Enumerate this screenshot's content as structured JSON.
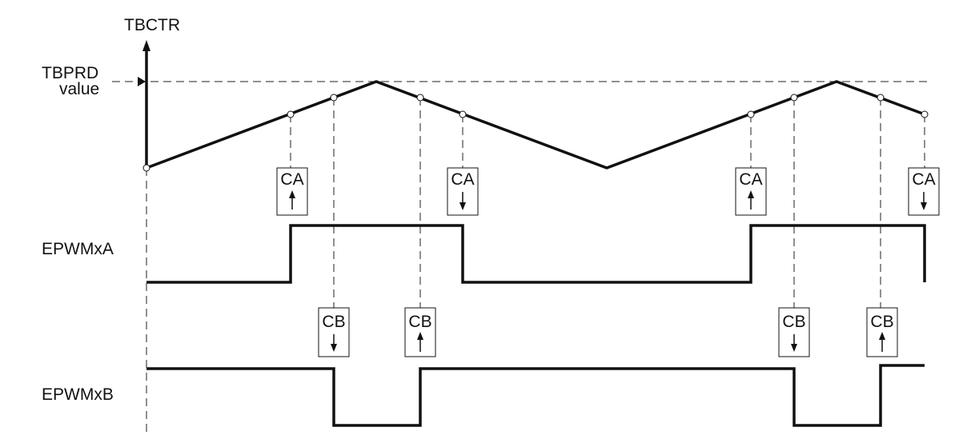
{
  "labels": {
    "tbctr": "TBCTR",
    "tbprd_line1": "TBPRD",
    "tbprd_line2": "value",
    "epwmxa": "EPWMxA",
    "epwmxb": "EPWMxB"
  },
  "events": [
    {
      "label": "CA",
      "direction": "up"
    },
    {
      "label": "CA",
      "direction": "down"
    },
    {
      "label": "CA",
      "direction": "up"
    },
    {
      "label": "CA",
      "direction": "down"
    },
    {
      "label": "CB",
      "direction": "down"
    },
    {
      "label": "CB",
      "direction": "up"
    },
    {
      "label": "CB",
      "direction": "down"
    },
    {
      "label": "CB",
      "direction": "up"
    }
  ],
  "colors": {
    "line": "#111111",
    "background": "#ffffff"
  }
}
